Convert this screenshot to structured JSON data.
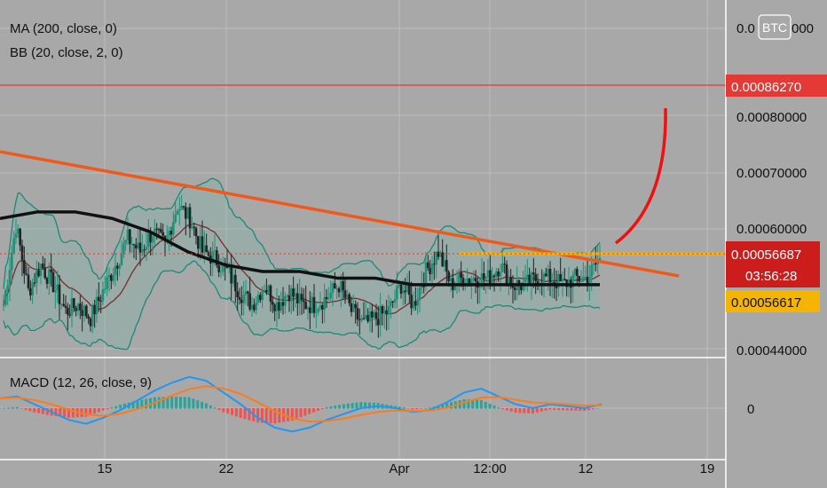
{
  "indicators": {
    "ma_label": "MA (200, close, 0)",
    "bb_label": "BB (20, close, 2, 0)",
    "macd_label": "MACD (12, 26, close, 9)"
  },
  "currency_badge": "BTC",
  "price_axis": {
    "top_partial_left": "0.0",
    "top_partial_right": "000",
    "ticks": [
      "0.00080000",
      "0.00070000",
      "0.00060000",
      "0.00044000"
    ],
    "resistance_label": "0.00086270",
    "last_price_label": "0.00056687",
    "countdown_label": "03:56:28",
    "support_label": "0.00056617"
  },
  "macd_axis": {
    "zero_label": "0"
  },
  "time_axis": [
    "15",
    "22",
    "Apr",
    "12:00",
    "12",
    "19"
  ],
  "colors": {
    "background": "#a8a8a8",
    "resistance": "#e53935",
    "last_price": "#e53935",
    "support": "#f5b400",
    "trendline": "#ef5a1a",
    "ma200": "#111111",
    "bb_basis": "#7b2d2d",
    "bb_band": "#1a8a7a",
    "candle_up": "#1f8f78",
    "candle_down": "#222222",
    "macd_line": "#2196f3",
    "signal_line": "#ff7a1a",
    "hist_up": "#26a69a",
    "hist_down": "#ef5350"
  },
  "chart_data": {
    "type": "candlestick",
    "price_ylim": [
      0.00042,
      0.00096
    ],
    "horizontal_levels": [
      {
        "name": "resistance",
        "value": 0.0008627
      },
      {
        "name": "last",
        "value": 0.00056687
      },
      {
        "name": "support",
        "value": 0.00056617
      }
    ],
    "price_ticks": [
      0.0008,
      0.0007,
      0.0006,
      0.00044
    ],
    "x_ticks": [
      "15",
      "22",
      "Apr",
      "12:00",
      "12",
      "19"
    ],
    "grid": true,
    "ma200": [
      0.00063,
      0.00064,
      0.00064,
      0.00063,
      0.00061,
      0.00058,
      0.00056,
      0.00055,
      0.00055,
      0.00054,
      0.00054,
      0.00053,
      0.00053,
      0.00053,
      0.00053,
      0.00053,
      0.00053
    ],
    "closes": [
      0.0005,
      0.00062,
      0.00052,
      0.00056,
      0.00053,
      0.00049,
      0.0005,
      0.00048,
      0.00052,
      0.00056,
      0.0006,
      0.00058,
      0.00061,
      0.00059,
      0.00065,
      0.00063,
      0.00058,
      0.00057,
      0.00055,
      0.00052,
      0.0005,
      0.00053,
      0.0005,
      0.00052,
      0.0005,
      0.0005,
      0.00051,
      0.00053,
      0.00049,
      0.00047,
      0.00048,
      0.00049,
      0.00053,
      0.0005,
      0.00055,
      0.00058,
      0.00053,
      0.00054,
      0.00054,
      0.00054,
      0.00056,
      0.00053,
      0.00053,
      0.00054,
      0.00054,
      0.00053,
      0.00054,
      0.00054,
      0.00057
    ],
    "macd": [
      0.5,
      0.6,
      0.2,
      -0.2,
      -0.6,
      -0.8,
      -0.5,
      -0.1,
      0.4,
      0.9,
      1.3,
      1.6,
      1.4,
      0.8,
      0.2,
      -0.5,
      -1.0,
      -1.2,
      -1.0,
      -0.6,
      -0.3,
      0.0,
      0.1,
      0.0,
      -0.2,
      -0.1,
      0.3,
      0.8,
      1.0,
      0.6,
      0.2,
      0.0,
      0.2,
      0.1,
      0.0,
      0.2
    ]
  }
}
